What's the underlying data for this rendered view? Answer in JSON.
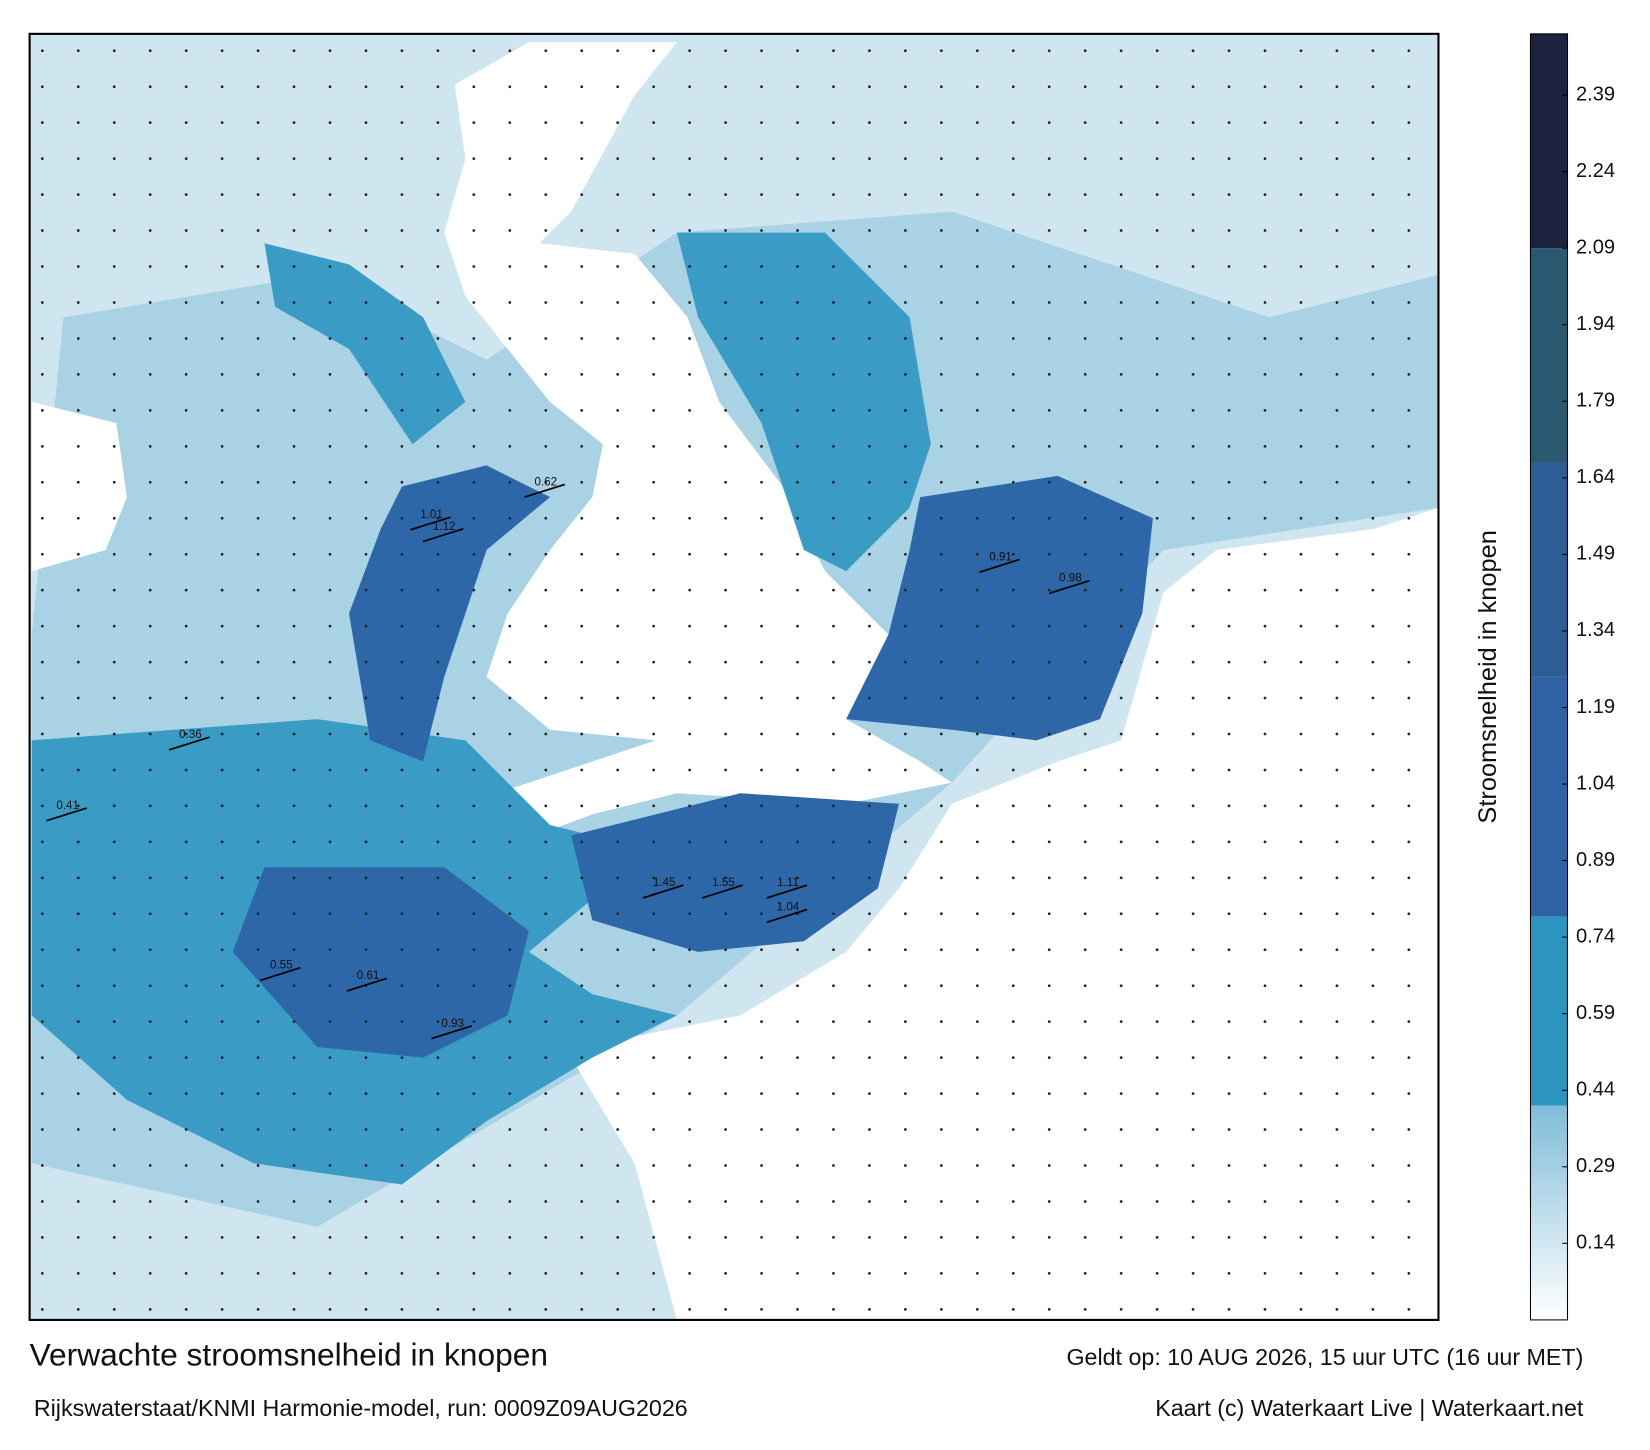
{
  "title": "Verwachte stroomsnelheid in knopen",
  "subtitle": "Rijkswaterstaat/KNMI Harmonie-model, run: 0009Z09AUG2026",
  "valid_time": "Geldt op: 10 AUG 2026, 15 uur UTC (16 uur MET)",
  "credits": "Kaart (c) Waterkaart Live | Waterkaart.net",
  "colorbar": {
    "label": "Stroomsnelheid in knopen",
    "range": [
      -0.01,
      2.51
    ],
    "ticks": [
      0.14,
      0.29,
      0.44,
      0.59,
      0.74,
      0.89,
      1.04,
      1.19,
      1.34,
      1.49,
      1.64,
      1.79,
      1.94,
      2.09,
      2.24,
      2.39
    ],
    "bands": [
      {
        "from": 0.41,
        "to": 0.78,
        "color": "#2b95bf"
      },
      {
        "from": 0.78,
        "to": 1.25,
        "color": "#2f62a4"
      },
      {
        "from": 1.25,
        "to": 1.67,
        "color": "#2e5d96"
      },
      {
        "from": 1.67,
        "to": 2.09,
        "color": "#2a5870"
      },
      {
        "from": 2.09,
        "to": 2.51,
        "color": "#1d2240"
      }
    ]
  },
  "speed_labels": [
    "1.45",
    "1.55",
    "1.11",
    "1.04",
    "0.93",
    "0.61",
    "0.55",
    "1.01",
    "1.12",
    "0.91",
    "0.98",
    "0.62",
    "0.36",
    "0.41"
  ]
}
